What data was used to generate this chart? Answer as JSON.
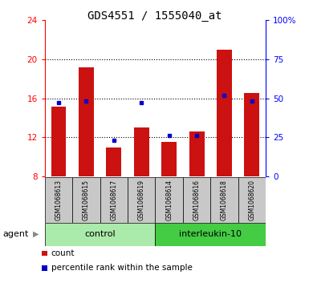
{
  "title": "GDS4551 / 1555040_at",
  "samples": [
    "GSM1068613",
    "GSM1068615",
    "GSM1068617",
    "GSM1068619",
    "GSM1068614",
    "GSM1068616",
    "GSM1068618",
    "GSM1068620"
  ],
  "counts": [
    15.1,
    19.2,
    10.9,
    13.0,
    11.5,
    12.6,
    21.0,
    16.5
  ],
  "percentiles": [
    47,
    48,
    23,
    47,
    26,
    26,
    52,
    48
  ],
  "ymin": 8,
  "ymax": 24,
  "yticks": [
    8,
    12,
    16,
    20,
    24
  ],
  "right_yticks": [
    0,
    25,
    50,
    75,
    100
  ],
  "right_ytick_labels": [
    "0",
    "25",
    "50",
    "75",
    "100%"
  ],
  "bar_color": "#cc1111",
  "dot_color": "#0000cc",
  "bg_color": "#c8c8c8",
  "control_color": "#aaeaaa",
  "il10_color": "#44cc44",
  "control_label": "control",
  "il10_label": "interleukin-10",
  "agent_label": "agent",
  "legend_count_label": "count",
  "legend_pct_label": "percentile rank within the sample",
  "title_fontsize": 10,
  "tick_fontsize": 7.5,
  "sample_fontsize": 5.5,
  "group_fontsize": 8,
  "legend_fontsize": 7.5
}
